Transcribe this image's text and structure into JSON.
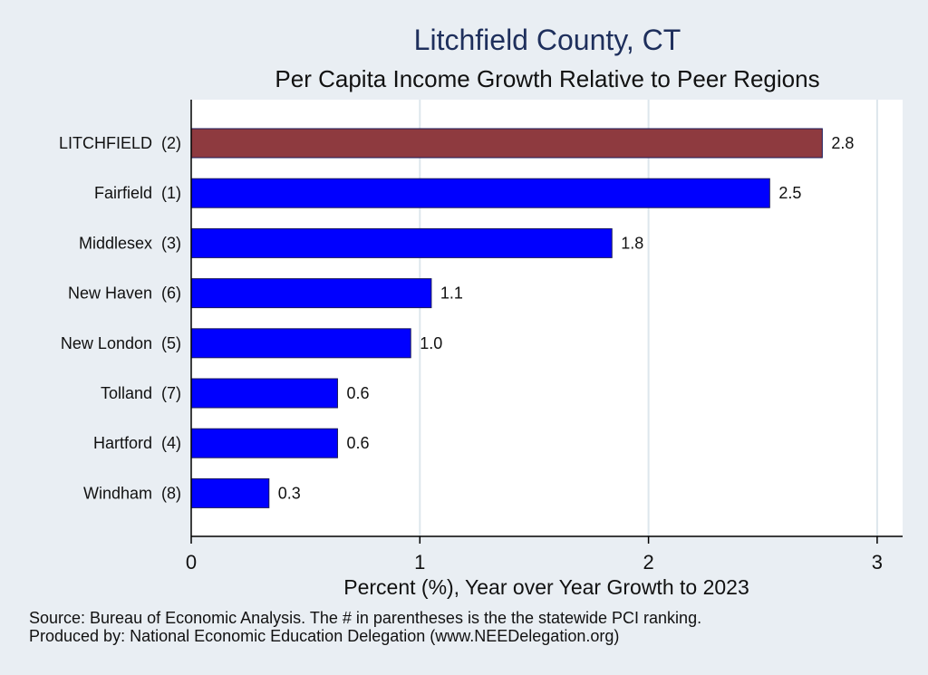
{
  "chart_data": {
    "type": "bar",
    "orientation": "horizontal",
    "title": "Litchfield County, CT",
    "subtitle": "Per Capita Income Growth Relative to Peer Regions",
    "xlabel": "Percent (%), Year over Year Growth to 2023",
    "ylabel": "",
    "xlim": [
      0,
      3.1
    ],
    "xticks": [
      0,
      1,
      2,
      3
    ],
    "grid": true,
    "categories": [
      "LITCHFIELD  (2)",
      "Fairfield  (1)",
      "Middlesex  (3)",
      "New Haven  (6)",
      "New London  (5)",
      "Tolland  (7)",
      "Hartford  (4)",
      "Windham  (8)"
    ],
    "values": [
      2.76,
      2.53,
      1.84,
      1.05,
      0.96,
      0.64,
      0.64,
      0.34
    ],
    "value_labels": [
      "2.8",
      "2.5",
      "1.8",
      "1.1",
      "1.0",
      "0.6",
      "0.6",
      "0.3"
    ],
    "highlight_index": 0,
    "colors": {
      "highlight": "#8e3a3f",
      "bar": "#0000ff",
      "bar_edge": "#1a1a5a",
      "grid": "#dde6ec",
      "plot_bg": "#ffffff",
      "page_bg": "#e9eef3"
    }
  },
  "footnotes": {
    "source": "Source: Bureau of Economic Analysis. The # in parentheses is the the statewide PCI ranking.",
    "producer": "Produced by: National Economic Education Delegation (www.NEEDelegation.org)"
  }
}
